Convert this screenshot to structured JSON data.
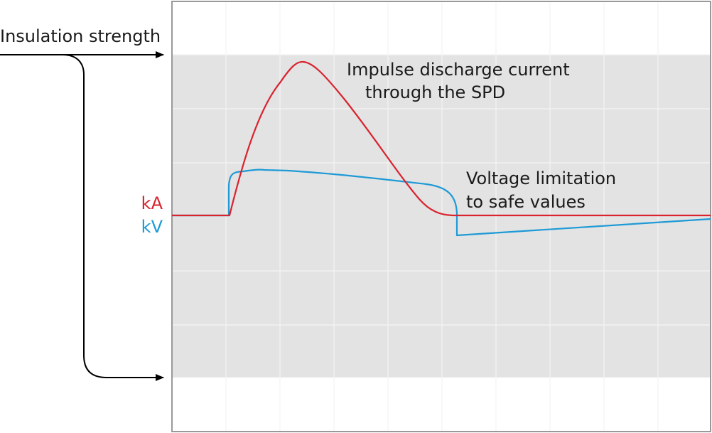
{
  "labels": {
    "insulation_strength": "Insulation strength",
    "current_annotation": [
      "Impulse discharge current",
      "through the SPD"
    ],
    "voltage_annotation": [
      "Voltage limitation",
      "to safe values"
    ],
    "unit_current": "kA",
    "unit_voltage": "kV"
  },
  "colors": {
    "current": "#d9232e",
    "voltage": "#1e9ad6",
    "band": "#e3e3e3",
    "grid": "#f2f2f2",
    "frame": "#999999",
    "arrow": "#000000"
  }
}
